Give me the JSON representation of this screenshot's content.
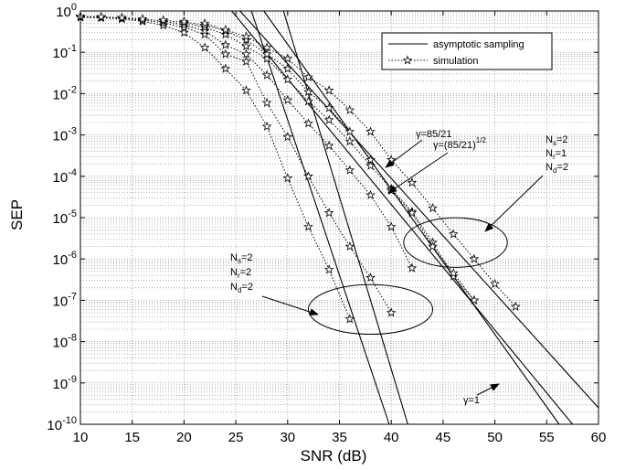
{
  "chart_data": {
    "type": "line",
    "xlabel": "SNR (dB)",
    "ylabel": "SEP",
    "xlim": [
      10,
      60
    ],
    "ylim": [
      1e-10,
      1
    ],
    "yscale": "log",
    "grid": true,
    "legend_position": "top-right",
    "x_ticks": [
      "10",
      "15",
      "20",
      "25",
      "30",
      "35",
      "40",
      "45",
      "50",
      "55",
      "60"
    ],
    "y_ticks": [
      {
        "base": "10",
        "exp": "0"
      },
      {
        "base": "10",
        "exp": "-1"
      },
      {
        "base": "10",
        "exp": "-2"
      },
      {
        "base": "10",
        "exp": "-3"
      },
      {
        "base": "10",
        "exp": "-4"
      },
      {
        "base": "10",
        "exp": "-5"
      },
      {
        "base": "10",
        "exp": "-6"
      },
      {
        "base": "10",
        "exp": "-7"
      },
      {
        "base": "10",
        "exp": "-8"
      },
      {
        "base": "10",
        "exp": "-9"
      },
      {
        "base": "10",
        "exp": "-10"
      }
    ],
    "legend": [
      {
        "label": "asymptotic sampling",
        "style": "solid"
      },
      {
        "label": "simulation",
        "style": "dotted-star"
      }
    ],
    "asymptotic_lines": [
      {
        "x": [
          26.5,
          39.8
        ],
        "y": [
          1,
          1e-10
        ]
      },
      {
        "x": [
          29.6,
          41.6
        ],
        "y": [
          1,
          1e-10
        ]
      },
      {
        "x": [
          27.7,
          56.2
        ],
        "y": [
          1,
          1e-10
        ]
      },
      {
        "x": [
          24.6,
          57.5
        ],
        "y": [
          1,
          1e-10
        ]
      },
      {
        "x": [
          25.4,
          60.0
        ],
        "y": [
          1,
          2.5e-10
        ]
      }
    ],
    "simulation_series": [
      {
        "x": [
          10,
          12,
          14,
          16,
          18,
          20,
          22,
          24,
          26,
          28,
          30,
          32,
          34,
          36
        ],
        "y": [
          0.7,
          0.68,
          0.64,
          0.56,
          0.45,
          0.3,
          0.13,
          0.04,
          0.012,
          0.0016,
          9e-05,
          6e-06,
          5.5e-07,
          3.5e-08
        ]
      },
      {
        "x": [
          10,
          12,
          14,
          16,
          18,
          20,
          22,
          24,
          26,
          28,
          30,
          32,
          34,
          36,
          38,
          40
        ],
        "y": [
          0.72,
          0.7,
          0.67,
          0.6,
          0.52,
          0.4,
          0.27,
          0.09,
          0.06,
          0.006,
          0.0009,
          0.0001,
          1.3e-05,
          2e-06,
          3.5e-07,
          5e-08
        ]
      },
      {
        "x": [
          10,
          12,
          14,
          16,
          18,
          20,
          22,
          24,
          26,
          28,
          30,
          32,
          34,
          36,
          38,
          40,
          42
        ],
        "y": [
          0.74,
          0.72,
          0.69,
          0.64,
          0.57,
          0.46,
          0.33,
          0.15,
          0.09,
          0.028,
          0.007,
          0.0019,
          0.00055,
          0.00014,
          3.5e-05,
          6e-06,
          6e-07
        ]
      },
      {
        "x": [
          18,
          20,
          22,
          24,
          26,
          28,
          30,
          32,
          34,
          36,
          38,
          40,
          42,
          44,
          46,
          48
        ],
        "y": [
          0.6,
          0.52,
          0.4,
          0.27,
          0.14,
          0.07,
          0.022,
          0.0065,
          0.0023,
          0.0007,
          0.00018,
          5e-05,
          1.4e-05,
          2.5e-06,
          3.8e-07,
          1e-07
        ]
      },
      {
        "x": [
          20,
          22,
          24,
          26,
          28,
          30,
          32,
          34,
          36,
          38,
          40,
          42,
          44,
          46,
          48
        ],
        "y": [
          0.55,
          0.45,
          0.33,
          0.2,
          0.09,
          0.04,
          0.011,
          0.0045,
          0.0012,
          0.00025,
          4.5e-05,
          1.3e-05,
          2e-06,
          4.5e-07,
          1e-07
        ]
      },
      {
        "x": [
          22,
          24,
          26,
          28,
          30,
          32,
          34,
          36,
          38,
          40,
          42,
          44,
          46,
          48,
          50,
          52
        ],
        "y": [
          0.5,
          0.35,
          0.24,
          0.13,
          0.07,
          0.025,
          0.012,
          0.004,
          0.0012,
          0.00025,
          7e-05,
          1.7e-05,
          4e-06,
          1e-06,
          2.5e-07,
          7e-08
        ]
      }
    ],
    "ellipses": [
      {
        "cx": 38,
        "cy": 6e-08,
        "rx": 6,
        "ry_decades": 0.6
      },
      {
        "cx": 46.2,
        "cy": 2.5e-06,
        "rx": 5,
        "ry_decades": 0.6
      }
    ],
    "annotations": [
      {
        "text": "γ=85/21"
      },
      {
        "text": "γ=(85/21)",
        "sup": "1/2"
      },
      {
        "text": "γ=1"
      }
    ],
    "param_labels": [
      {
        "lines": [
          {
            "b": "N",
            "s": "s",
            "t": "=2"
          },
          {
            "b": "N",
            "s": "r",
            "t": "=2"
          },
          {
            "b": "N",
            "s": "d",
            "t": "=2"
          }
        ]
      },
      {
        "lines": [
          {
            "b": "N",
            "s": "s",
            "t": "=2"
          },
          {
            "b": "N",
            "s": "r",
            "t": "=1"
          },
          {
            "b": "N",
            "s": "d",
            "t": "=2"
          }
        ]
      }
    ]
  }
}
